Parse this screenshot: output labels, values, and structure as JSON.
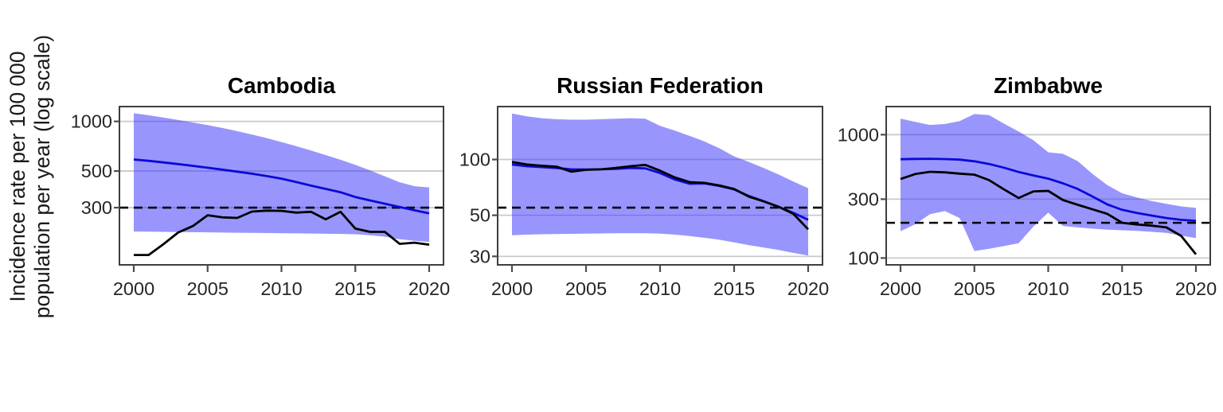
{
  "figure": {
    "y_axis_label": {
      "line1": "Incidence rate per 100 000",
      "line2": "population per year (log scale)"
    },
    "colors": {
      "background": "#ffffff",
      "band_fill": "rgba(57,54,250,0.52)",
      "band_visible_tone": "#9896fa",
      "estimate_line": "#0a0ad6",
      "observed_line": "#000000",
      "dashed_line": "#000000",
      "gridline": "#c9c9c9",
      "panel_border": "#3d3d3d",
      "tick_mark": "#4d4d4d",
      "tick_label": "#262626",
      "title": "#000000"
    }
  },
  "chart_data": [
    {
      "type": "line",
      "title": "Cambodia",
      "y_scale": "log",
      "x_ticks": [
        2000,
        2005,
        2010,
        2015,
        2020
      ],
      "y_ticks": [
        1000,
        500,
        300
      ],
      "y_domain": [
        135,
        1230
      ],
      "dashed_reference_value": 300,
      "x": [
        2000,
        2001,
        2002,
        2003,
        2004,
        2005,
        2006,
        2007,
        2008,
        2009,
        2010,
        2011,
        2012,
        2013,
        2014,
        2015,
        2016,
        2017,
        2018,
        2019,
        2020
      ],
      "band": {
        "upper": [
          1120,
          1090,
          1055,
          1020,
          985,
          950,
          912,
          873,
          833,
          792,
          750,
          708,
          666,
          625,
          585,
          545,
          505,
          465,
          428,
          405,
          398
        ],
        "lower": [
          215,
          214.5,
          214,
          213.5,
          213,
          212.5,
          212,
          211.5,
          211,
          210.5,
          210,
          209.5,
          209,
          208.5,
          208,
          207,
          204,
          200,
          193,
          189,
          186
        ]
      },
      "series": [
        {
          "name": "estimate-blue-line",
          "color": "#0a0ad6",
          "values": [
            588,
            577,
            564,
            551,
            538,
            524,
            510,
            496,
            482,
            466,
            450,
            429,
            408,
            390,
            372,
            348,
            332,
            317,
            303,
            289,
            277
          ]
        },
        {
          "name": "observed-black-line",
          "color": "#000000",
          "values": [
            155,
            155,
            180,
            212,
            232,
            270,
            262,
            260,
            284,
            288,
            287,
            280,
            283,
            255,
            283,
            224,
            214,
            214,
            181,
            184,
            179
          ]
        }
      ]
    },
    {
      "type": "line",
      "title": "Russian Federation",
      "y_scale": "log",
      "x_ticks": [
        2000,
        2005,
        2010,
        2015,
        2020
      ],
      "y_ticks": [
        100,
        50,
        30
      ],
      "y_domain": [
        27,
        193
      ],
      "dashed_reference_value": 55,
      "x": [
        2000,
        2001,
        2002,
        2003,
        2004,
        2005,
        2006,
        2007,
        2008,
        2009,
        2010,
        2011,
        2012,
        2013,
        2014,
        2015,
        2016,
        2017,
        2018,
        2019,
        2020
      ],
      "band": {
        "upper": [
          177,
          171,
          167,
          165,
          164,
          164,
          165,
          166,
          167,
          166,
          152,
          143,
          134,
          125,
          115,
          104,
          97,
          90,
          83,
          76,
          70
        ],
        "lower": [
          39,
          39.3,
          39.5,
          39.6,
          39.7,
          39.8,
          39.9,
          40,
          40,
          40,
          39.8,
          39.3,
          38.6,
          37.8,
          36.9,
          35.7,
          34.5,
          33.5,
          32.5,
          31.3,
          30.3
        ]
      },
      "series": [
        {
          "name": "estimate-blue-line",
          "color": "#0a0ad6",
          "values": [
            94,
            92,
            91,
            90,
            88.5,
            88.2,
            88.5,
            89,
            90,
            89.5,
            84.5,
            78,
            74,
            74.3,
            72,
            69,
            63.5,
            59.5,
            55.5,
            51.5,
            47.3
          ]
        },
        {
          "name": "observed-black-line",
          "color": "#000000",
          "values": [
            97,
            94,
            92.5,
            91.5,
            86,
            88,
            88.5,
            90,
            92,
            93.5,
            87,
            80,
            75.5,
            74.8,
            72.5,
            69.3,
            63,
            59.4,
            55.6,
            50.9,
            42
          ]
        }
      ]
    },
    {
      "type": "line",
      "title": "Zimbabwe",
      "y_scale": "log",
      "x_ticks": [
        2000,
        2005,
        2010,
        2015,
        2020
      ],
      "y_ticks": [
        1000,
        300,
        100
      ],
      "y_domain": [
        88,
        1690
      ],
      "dashed_reference_value": 193,
      "x": [
        2000,
        2001,
        2002,
        2003,
        2004,
        2005,
        2006,
        2007,
        2008,
        2009,
        2010,
        2011,
        2012,
        2013,
        2014,
        2015,
        2016,
        2017,
        2018,
        2019,
        2020
      ],
      "band": {
        "upper": [
          1350,
          1270,
          1200,
          1220,
          1290,
          1470,
          1440,
          1230,
          1060,
          900,
          720,
          700,
          610,
          480,
          390,
          335,
          310,
          290,
          275,
          262,
          255
        ],
        "lower": [
          165,
          188,
          227,
          240,
          211,
          114,
          119,
          125,
          132,
          180,
          233,
          182,
          177,
          173,
          170,
          168,
          166,
          163,
          160,
          152,
          145
        ]
      },
      "series": [
        {
          "name": "estimate-blue-line",
          "color": "#0a0ad6",
          "values": [
            632,
            636,
            638,
            634,
            628,
            608,
            578,
            540,
            498,
            467,
            440,
            403,
            363,
            315,
            272,
            246,
            232,
            221,
            211,
            204,
            200
          ]
        },
        {
          "name": "observed-black-line",
          "color": "#000000",
          "values": [
            437,
            480,
            500,
            495,
            483,
            474,
            428,
            360,
            307,
            347,
            350,
            295,
            270,
            248,
            228,
            193,
            187,
            183,
            177,
            151,
            107
          ]
        }
      ]
    }
  ]
}
